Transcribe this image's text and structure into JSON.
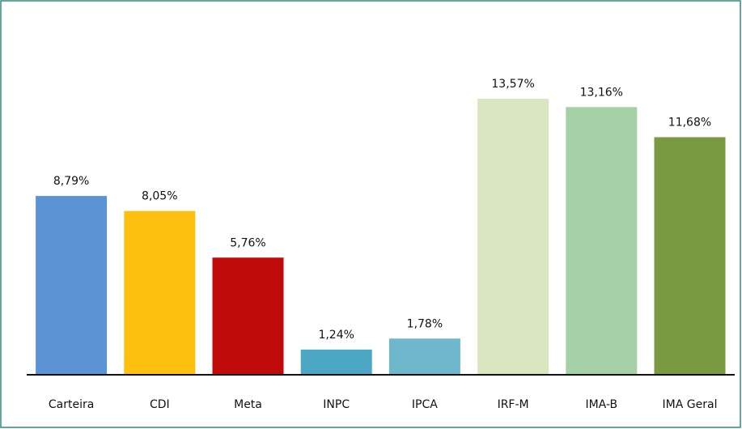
{
  "chart_data": {
    "type": "bar",
    "categories": [
      "Carteira",
      "CDI",
      "Meta",
      "INPC",
      "IPCA",
      "IRF-M",
      "IMA-B",
      "IMA Geral"
    ],
    "values": [
      8.79,
      8.05,
      5.76,
      1.24,
      1.78,
      13.57,
      13.16,
      11.68
    ],
    "value_labels": [
      "8,79%",
      "8,05%",
      "5,76%",
      "1,24%",
      "1,78%",
      "13,57%",
      "13,16%",
      "11,68%"
    ],
    "colors": [
      "#5b93d5",
      "#fec00f",
      "#c00b0b",
      "#4ba7c3",
      "#6eb7cd",
      "#d9e6c0",
      "#a6d0a6",
      "#7a9a42"
    ]
  }
}
